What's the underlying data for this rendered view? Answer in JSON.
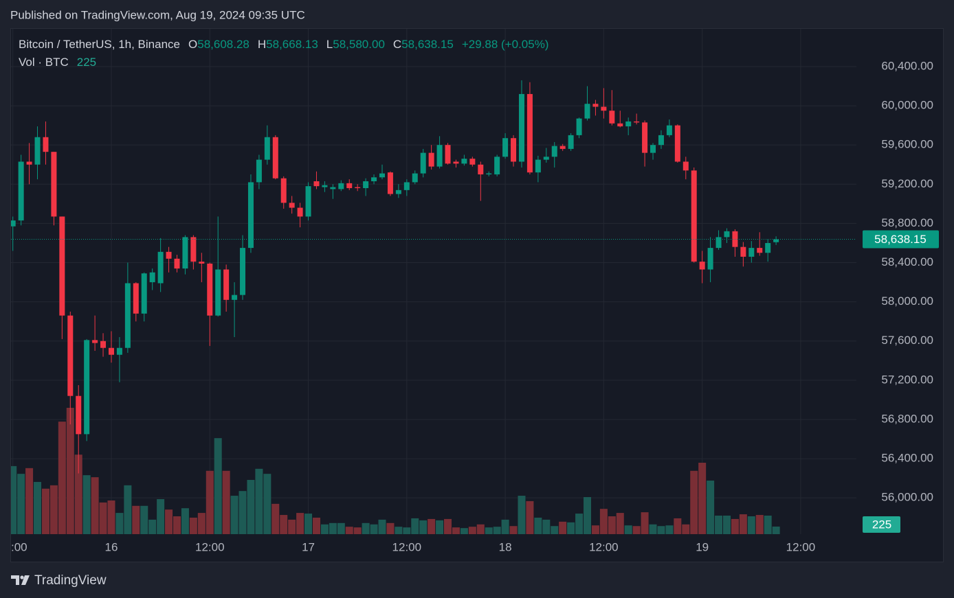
{
  "header": {
    "published": "Published on TradingView.com, Aug 19, 2024 09:35 UTC"
  },
  "chart_data": {
    "type": "candlestick",
    "title": "Bitcoin / TetherUS, 1h, Binance",
    "categories": [
      ":00",
      null,
      null,
      null,
      null,
      null,
      null,
      null,
      null,
      null,
      null,
      null,
      "16",
      null,
      null,
      null,
      null,
      null,
      null,
      null,
      null,
      null,
      null,
      null,
      "12:00",
      null,
      null,
      null,
      null,
      null,
      null,
      null,
      null,
      null,
      null,
      null,
      "17",
      null,
      null,
      null,
      null,
      null,
      null,
      null,
      null,
      null,
      null,
      null,
      "12:00",
      null,
      null,
      null,
      null,
      null,
      null,
      null,
      null,
      null,
      null,
      null,
      "18",
      null,
      null,
      null,
      null,
      null,
      null,
      null,
      null,
      null,
      null,
      null,
      "12:00",
      null,
      null,
      null,
      null,
      null,
      null,
      null,
      null,
      null,
      null,
      null,
      "19",
      null,
      null,
      null,
      null,
      null,
      null,
      null,
      null,
      null,
      null,
      null,
      "12:00",
      null,
      null,
      null,
      null,
      null,
      null
    ],
    "open": [
      58770,
      58830,
      59430,
      59400,
      59680,
      59530,
      58870,
      57860,
      57040,
      56650,
      57610,
      57600,
      57530,
      57460,
      57530,
      58190,
      57880,
      58200,
      58190,
      58510,
      58440,
      58340,
      58660,
      58410,
      58390,
      57860,
      58330,
      58020,
      58070,
      58550,
      59220,
      59450,
      59680,
      59260,
      59010,
      58960,
      58870,
      59230,
      59170,
      59150,
      59150,
      59210,
      59170,
      59160,
      59230,
      59270,
      59320,
      59100,
      59140,
      59220,
      59310,
      59520,
      59380,
      59600,
      59430,
      59410,
      59460,
      59400,
      59300,
      59300,
      59480,
      59670,
      59430,
      60120,
      59320,
      59450,
      59480,
      59590,
      59560,
      59700,
      59870,
      60020,
      59990,
      59950,
      59820,
      59790,
      59840,
      59830,
      59520,
      59600,
      59700,
      59800,
      59430,
      59340,
      58410,
      58330,
      58550,
      58660,
      58720,
      58560,
      58460,
      58550,
      58500,
      58608.28,
      null,
      null,
      null,
      null,
      null,
      null,
      null,
      null,
      null
    ],
    "high": [
      58870,
      59500,
      59620,
      59790,
      59840,
      59530,
      58870,
      57900,
      57150,
      57620,
      57860,
      57680,
      57700,
      57640,
      58400,
      58200,
      58300,
      58340,
      58650,
      58560,
      58480,
      58680,
      58680,
      58500,
      58400,
      58870,
      58380,
      58200,
      58680,
      59300,
      59500,
      59800,
      59700,
      59280,
      59080,
      59010,
      59220,
      59330,
      59230,
      59200,
      59240,
      59250,
      59200,
      59260,
      59300,
      59400,
      59330,
      59200,
      59250,
      59340,
      59560,
      59600,
      59690,
      59620,
      59450,
      59500,
      59480,
      59430,
      59330,
      59500,
      59720,
      59700,
      60260,
      60240,
      59490,
      59570,
      59630,
      59610,
      59720,
      59880,
      60200,
      60060,
      60180,
      60160,
      59950,
      59880,
      59920,
      59850,
      59620,
      59750,
      59860,
      59810,
      59480,
      59370,
      58520,
      58660,
      58730,
      58750,
      58740,
      58610,
      58620,
      58710,
      58640,
      58668.13,
      null,
      null,
      null,
      null,
      null,
      null,
      null,
      null,
      null
    ],
    "low": [
      58520,
      58780,
      59200,
      59250,
      59400,
      58780,
      57620,
      56750,
      56250,
      56580,
      57500,
      57440,
      57380,
      57180,
      57480,
      57800,
      57800,
      58120,
      58100,
      58300,
      58300,
      58280,
      58330,
      58200,
      57550,
      57850,
      57900,
      57640,
      58020,
      58500,
      59150,
      59400,
      59250,
      58950,
      58900,
      58760,
      58830,
      59150,
      59120,
      59050,
      59130,
      59140,
      59130,
      59080,
      59200,
      59250,
      59080,
      59060,
      59080,
      59200,
      59270,
      59350,
      59360,
      59400,
      59370,
      59390,
      59380,
      59030,
      59280,
      59280,
      59460,
      59380,
      59370,
      59300,
      59220,
      59420,
      59370,
      59540,
      59540,
      59670,
      59850,
      59900,
      59870,
      59800,
      59780,
      59700,
      59810,
      59380,
      59450,
      59560,
      59680,
      59420,
      59250,
      58400,
      58190,
      58200,
      58530,
      58600,
      58460,
      58360,
      58400,
      58470,
      58410,
      58580,
      null,
      null,
      null,
      null,
      null,
      null,
      null,
      null,
      null
    ],
    "close": [
      58830,
      59430,
      59400,
      59680,
      59530,
      58870,
      57860,
      57040,
      56650,
      57610,
      57580,
      57530,
      57460,
      57530,
      58190,
      57880,
      58290,
      58300,
      58510,
      58440,
      58340,
      58660,
      58410,
      58390,
      57860,
      58330,
      58020,
      58070,
      58550,
      59220,
      59450,
      59680,
      59260,
      59010,
      58960,
      58870,
      59180,
      59180,
      59190,
      59170,
      59210,
      59160,
      59160,
      59230,
      59270,
      59310,
      59100,
      59140,
      59220,
      59310,
      59520,
      59380,
      59600,
      59410,
      59410,
      59460,
      59400,
      59300,
      59310,
      59480,
      59670,
      59430,
      60120,
      59320,
      59450,
      59480,
      59590,
      59560,
      59700,
      59870,
      60020,
      59990,
      59950,
      59820,
      59790,
      59840,
      59830,
      59520,
      59600,
      59700,
      59800,
      59430,
      59340,
      58410,
      58330,
      58550,
      58660,
      58720,
      58560,
      58460,
      58550,
      58500,
      58600,
      58638.15,
      null,
      null,
      null,
      null,
      null,
      null,
      null,
      null,
      null
    ],
    "volume": [
      2020,
      1790,
      1960,
      1550,
      1350,
      1450,
      3340,
      3750,
      2360,
      1750,
      1690,
      940,
      1000,
      630,
      1450,
      840,
      840,
      430,
      1040,
      730,
      530,
      770,
      490,
      630,
      1880,
      2850,
      1880,
      1140,
      1280,
      1610,
      1940,
      1790,
      900,
      570,
      430,
      630,
      610,
      490,
      290,
      330,
      330,
      220,
      200,
      330,
      290,
      430,
      330,
      220,
      200,
      470,
      410,
      450,
      410,
      450,
      200,
      180,
      220,
      290,
      200,
      220,
      430,
      240,
      1140,
      980,
      490,
      430,
      240,
      370,
      350,
      610,
      1100,
      260,
      750,
      530,
      630,
      260,
      240,
      650,
      290,
      240,
      260,
      470,
      290,
      1880,
      2120,
      1590,
      550,
      550,
      450,
      590,
      530,
      570,
      550,
      225,
      null,
      null,
      null,
      null,
      null,
      null,
      null,
      null,
      null
    ],
    "volume_name": "Vol · BTC",
    "ohlc_keys": [
      "O",
      "H",
      "L",
      "C"
    ],
    "last_labels": [
      "58,608.28",
      "58,668.13",
      "58,580.00",
      "58,638.15"
    ],
    "change_label": "+29.88 (+0.05%)",
    "ylim": [
      55630,
      60785
    ],
    "yticks": [
      {
        "value": 56000,
        "label": "56,000.00"
      },
      {
        "value": 56400,
        "label": "56,400.00"
      },
      {
        "value": 56800,
        "label": "56,800.00"
      },
      {
        "value": 57200,
        "label": "57,200.00"
      },
      {
        "value": 57600,
        "label": "57,600.00"
      },
      {
        "value": 58000,
        "label": "58,000.00"
      },
      {
        "value": 58400,
        "label": "58,400.00"
      },
      {
        "value": 58800,
        "label": "58,800.00"
      },
      {
        "value": 59200,
        "label": "59,200.00"
      },
      {
        "value": 59600,
        "label": "59,600.00"
      },
      {
        "value": 60000,
        "label": "60,000.00"
      },
      {
        "value": 60400,
        "label": "60,400.00"
      }
    ],
    "volume_lim": [
      0,
      15000
    ],
    "up_color": "#089981",
    "down_color": "#f23645",
    "up_volume_color": "#1d5b55",
    "down_volume_color": "#7a2e35",
    "grid": true
  },
  "footer": {
    "brand": "TradingView"
  }
}
